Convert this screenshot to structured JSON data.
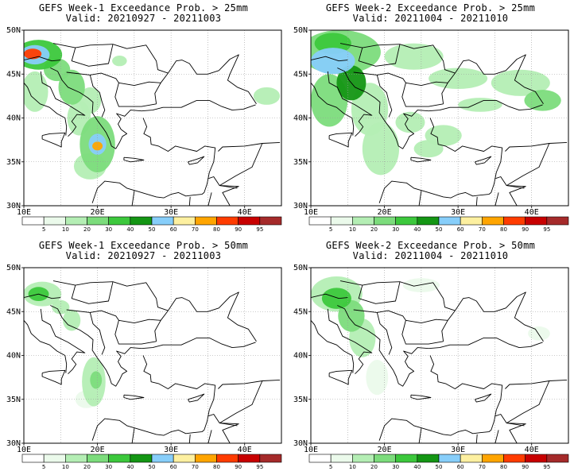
{
  "panels": [
    {
      "title": "GEFS Week-1 Exceedance Prob. > 25mm",
      "valid": "Valid: 20210927 - 20211003",
      "week": 1,
      "threshold_mm": 25,
      "blobs": [
        {
          "lon": 12.0,
          "lat": 47.2,
          "rx": 3.2,
          "ry": 1.7,
          "p": 35
        },
        {
          "lon": 11.5,
          "lat": 47.2,
          "rx": 2.0,
          "ry": 1.1,
          "p": 58
        },
        {
          "lon": 11.2,
          "lat": 47.3,
          "rx": 1.2,
          "ry": 0.6,
          "p": 82
        },
        {
          "lon": 14.5,
          "lat": 45.5,
          "rx": 1.8,
          "ry": 1.3,
          "p": 25
        },
        {
          "lon": 11.5,
          "lat": 43.0,
          "rx": 1.8,
          "ry": 2.3,
          "p": 18
        },
        {
          "lon": 16.5,
          "lat": 43.5,
          "rx": 1.8,
          "ry": 2.0,
          "p": 25
        },
        {
          "lon": 19.0,
          "lat": 42.0,
          "rx": 1.5,
          "ry": 1.5,
          "p": 18
        },
        {
          "lon": 17.5,
          "lat": 40.0,
          "rx": 1.6,
          "ry": 2.0,
          "p": 15
        },
        {
          "lon": 20.0,
          "lat": 37.0,
          "rx": 2.4,
          "ry": 3.2,
          "p": 25
        },
        {
          "lon": 20.0,
          "lat": 37.0,
          "rx": 1.2,
          "ry": 1.2,
          "p": 55
        },
        {
          "lon": 20.0,
          "lat": 36.8,
          "rx": 0.7,
          "ry": 0.5,
          "p": 75
        },
        {
          "lon": 19.0,
          "lat": 34.5,
          "rx": 2.2,
          "ry": 1.5,
          "p": 12
        },
        {
          "lon": 23.0,
          "lat": 46.5,
          "rx": 1.0,
          "ry": 0.6,
          "p": 12
        },
        {
          "lon": 43.0,
          "lat": 42.5,
          "rx": 1.8,
          "ry": 1.0,
          "p": 15
        }
      ]
    },
    {
      "title": "GEFS Week-2 Exceedance Prob. > 25mm",
      "valid": "Valid: 20211004 - 20211010",
      "week": 2,
      "threshold_mm": 25,
      "blobs": [
        {
          "lon": 14.0,
          "lat": 47.5,
          "rx": 5.5,
          "ry": 2.5,
          "p": 25
        },
        {
          "lon": 13.0,
          "lat": 46.5,
          "rx": 3.0,
          "ry": 1.5,
          "p": 55
        },
        {
          "lon": 13.0,
          "lat": 48.5,
          "rx": 2.5,
          "ry": 1.2,
          "p": 35
        },
        {
          "lon": 15.5,
          "lat": 44.0,
          "rx": 2.0,
          "ry": 2.0,
          "p": 40
        },
        {
          "lon": 12.5,
          "lat": 42.0,
          "rx": 2.5,
          "ry": 3.0,
          "p": 20
        },
        {
          "lon": 18.0,
          "lat": 41.0,
          "rx": 2.5,
          "ry": 3.0,
          "p": 15
        },
        {
          "lon": 19.5,
          "lat": 36.5,
          "rx": 2.5,
          "ry": 3.0,
          "p": 15
        },
        {
          "lon": 24.0,
          "lat": 47.0,
          "rx": 4.0,
          "ry": 1.5,
          "p": 12
        },
        {
          "lon": 30.0,
          "lat": 44.5,
          "rx": 4.0,
          "ry": 1.2,
          "p": 10
        },
        {
          "lon": 38.5,
          "lat": 44.0,
          "rx": 4.0,
          "ry": 1.5,
          "p": 15
        },
        {
          "lon": 41.5,
          "lat": 42.0,
          "rx": 2.5,
          "ry": 1.2,
          "p": 20
        },
        {
          "lon": 33.0,
          "lat": 41.5,
          "rx": 3.0,
          "ry": 0.8,
          "p": 10
        },
        {
          "lon": 23.5,
          "lat": 39.5,
          "rx": 2.0,
          "ry": 1.2,
          "p": 12
        },
        {
          "lon": 28.0,
          "lat": 38.0,
          "rx": 2.5,
          "ry": 1.2,
          "p": 12
        },
        {
          "lon": 26.0,
          "lat": 36.5,
          "rx": 2.0,
          "ry": 1.0,
          "p": 10
        }
      ]
    },
    {
      "title": "GEFS Week-1 Exceedance Prob. > 50mm",
      "valid": "Valid: 20210927 - 20211003",
      "week": 1,
      "threshold_mm": 50,
      "blobs": [
        {
          "lon": 12.5,
          "lat": 47.0,
          "rx": 2.6,
          "ry": 1.4,
          "p": 18
        },
        {
          "lon": 12.0,
          "lat": 47.0,
          "rx": 1.4,
          "ry": 0.8,
          "p": 30
        },
        {
          "lon": 15.0,
          "lat": 45.5,
          "rx": 1.2,
          "ry": 0.8,
          "p": 10
        },
        {
          "lon": 16.5,
          "lat": 44.0,
          "rx": 1.2,
          "ry": 1.2,
          "p": 12
        },
        {
          "lon": 19.5,
          "lat": 37.0,
          "rx": 1.6,
          "ry": 2.8,
          "p": 12
        },
        {
          "lon": 19.8,
          "lat": 37.2,
          "rx": 0.8,
          "ry": 1.0,
          "p": 22
        },
        {
          "lon": 18.5,
          "lat": 35.0,
          "rx": 1.5,
          "ry": 1.0,
          "p": 8
        }
      ]
    },
    {
      "title": "GEFS Week-2 Exceedance Prob. > 50mm",
      "valid": "Valid: 20211004 - 20211010",
      "week": 2,
      "threshold_mm": 50,
      "blobs": [
        {
          "lon": 13.5,
          "lat": 47.0,
          "rx": 3.5,
          "ry": 2.0,
          "p": 15
        },
        {
          "lon": 13.5,
          "lat": 46.5,
          "rx": 2.0,
          "ry": 1.2,
          "p": 30
        },
        {
          "lon": 15.5,
          "lat": 44.5,
          "rx": 1.8,
          "ry": 1.8,
          "p": 22
        },
        {
          "lon": 17.0,
          "lat": 42.0,
          "rx": 1.8,
          "ry": 2.2,
          "p": 12
        },
        {
          "lon": 19.0,
          "lat": 37.5,
          "rx": 1.5,
          "ry": 2.0,
          "p": 8
        },
        {
          "lon": 25.0,
          "lat": 48.0,
          "rx": 2.5,
          "ry": 0.8,
          "p": 8
        },
        {
          "lon": 41.0,
          "lat": 42.5,
          "rx": 1.5,
          "ry": 0.8,
          "p": 8
        }
      ]
    }
  ],
  "map": {
    "lon_range": [
      10,
      45
    ],
    "lat_range": [
      30,
      50
    ],
    "lon_labels": [
      "10E",
      "20E",
      "30E",
      "40E"
    ],
    "lat_labels": [
      "30N",
      "35N",
      "40N",
      "45N",
      "50N"
    ],
    "grid": "dotted"
  },
  "colorbar": {
    "labels": [
      "5",
      "10",
      "20",
      "30",
      "40",
      "50",
      "60",
      "70",
      "80",
      "90",
      "95"
    ],
    "colors": [
      "#ffffff",
      "#ebfaeb",
      "#b4eeb4",
      "#7cdc7c",
      "#3cc83c",
      "#149614",
      "#87cefa",
      "#fdf0a0",
      "#ffa500",
      "#ff3c00",
      "#c80000",
      "#a52a2a"
    ]
  }
}
